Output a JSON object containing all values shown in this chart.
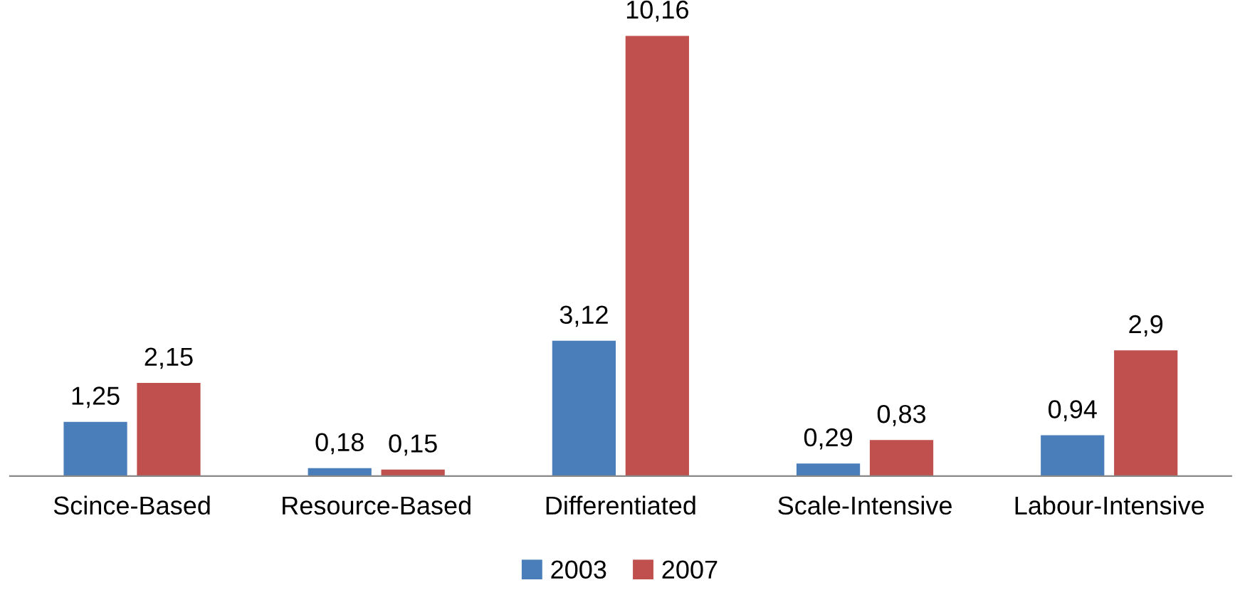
{
  "chart_data": {
    "type": "bar",
    "categories": [
      "Scince-Based",
      "Resource-Based",
      "Differentiated",
      "Scale-Intensive",
      "Labour-Intensive"
    ],
    "series": [
      {
        "name": "2003",
        "color": "#4a7ebb",
        "values": [
          1.25,
          0.18,
          3.12,
          0.29,
          0.94
        ],
        "value_labels": [
          "1,25",
          "0,18",
          "3,12",
          "0,29",
          "0,94"
        ]
      },
      {
        "name": "2007",
        "color": "#c0504d",
        "values": [
          2.15,
          0.15,
          10.16,
          0.83,
          2.9
        ],
        "value_labels": [
          "2,15",
          "0,15",
          "10,16",
          "0,83",
          "2,9"
        ]
      }
    ],
    "legend": "bottom",
    "grid": false
  }
}
